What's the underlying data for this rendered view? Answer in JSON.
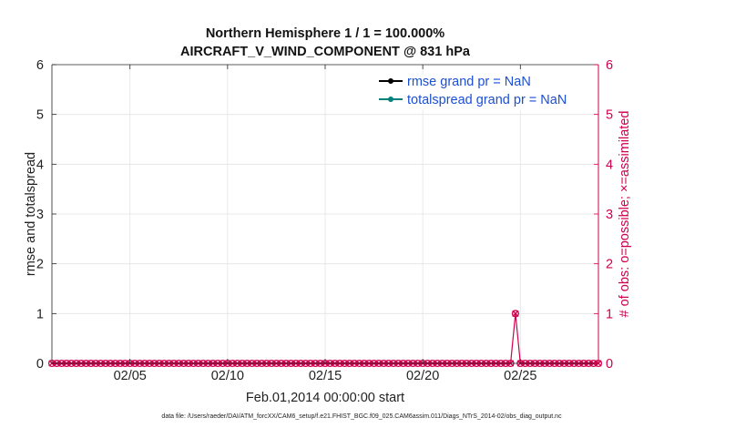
{
  "chart_data": {
    "type": "line",
    "title": [
      "Northern Hemisphere 1 / 1 = 100.000%",
      "AIRCRAFT_V_WIND_COMPONENT @ 831 hPa"
    ],
    "xlabel": "Feb.01,2014 00:00:00 start",
    "ylabel_left": "rmse and totalspread",
    "ylabel_right": "# of obs: o=possible; ×=assimilated",
    "x_range_days": [
      1.0,
      29.0
    ],
    "x_ticks": [
      {
        "day": 5,
        "label": "02/05"
      },
      {
        "day": 10,
        "label": "02/10"
      },
      {
        "day": 15,
        "label": "02/15"
      },
      {
        "day": 20,
        "label": "02/20"
      },
      {
        "day": 25,
        "label": "02/25"
      }
    ],
    "ylim_left": [
      0,
      6
    ],
    "ylim_right": [
      0,
      6
    ],
    "y_ticks": [
      "0",
      "1",
      "2",
      "3",
      "4",
      "5",
      "6"
    ],
    "grid": true,
    "legend_placement": "top-right",
    "legend": [
      {
        "label": "rmse grand pr = NaN",
        "color": "#000000"
      },
      {
        "label": "totalspread grand pr = NaN",
        "color": "#00807a"
      }
    ],
    "obs_series": {
      "name": "",
      "color": "#d0004e",
      "x_start_day": 1.0,
      "x_end_day": 29.0,
      "step_days": 0.25,
      "baseline_value": 0,
      "spikes": [
        {
          "day": 24.75,
          "value": 1
        }
      ]
    },
    "right_axis_color": "#d0004e",
    "footnote": "data file: /Users/raeder/DAI/ATM_forcXX/CAM6_setup/f.e21.FHIST_BGC.f09_025.CAM6assim.011/Diags_NTrS_2014-02/obs_diag_output.nc"
  }
}
